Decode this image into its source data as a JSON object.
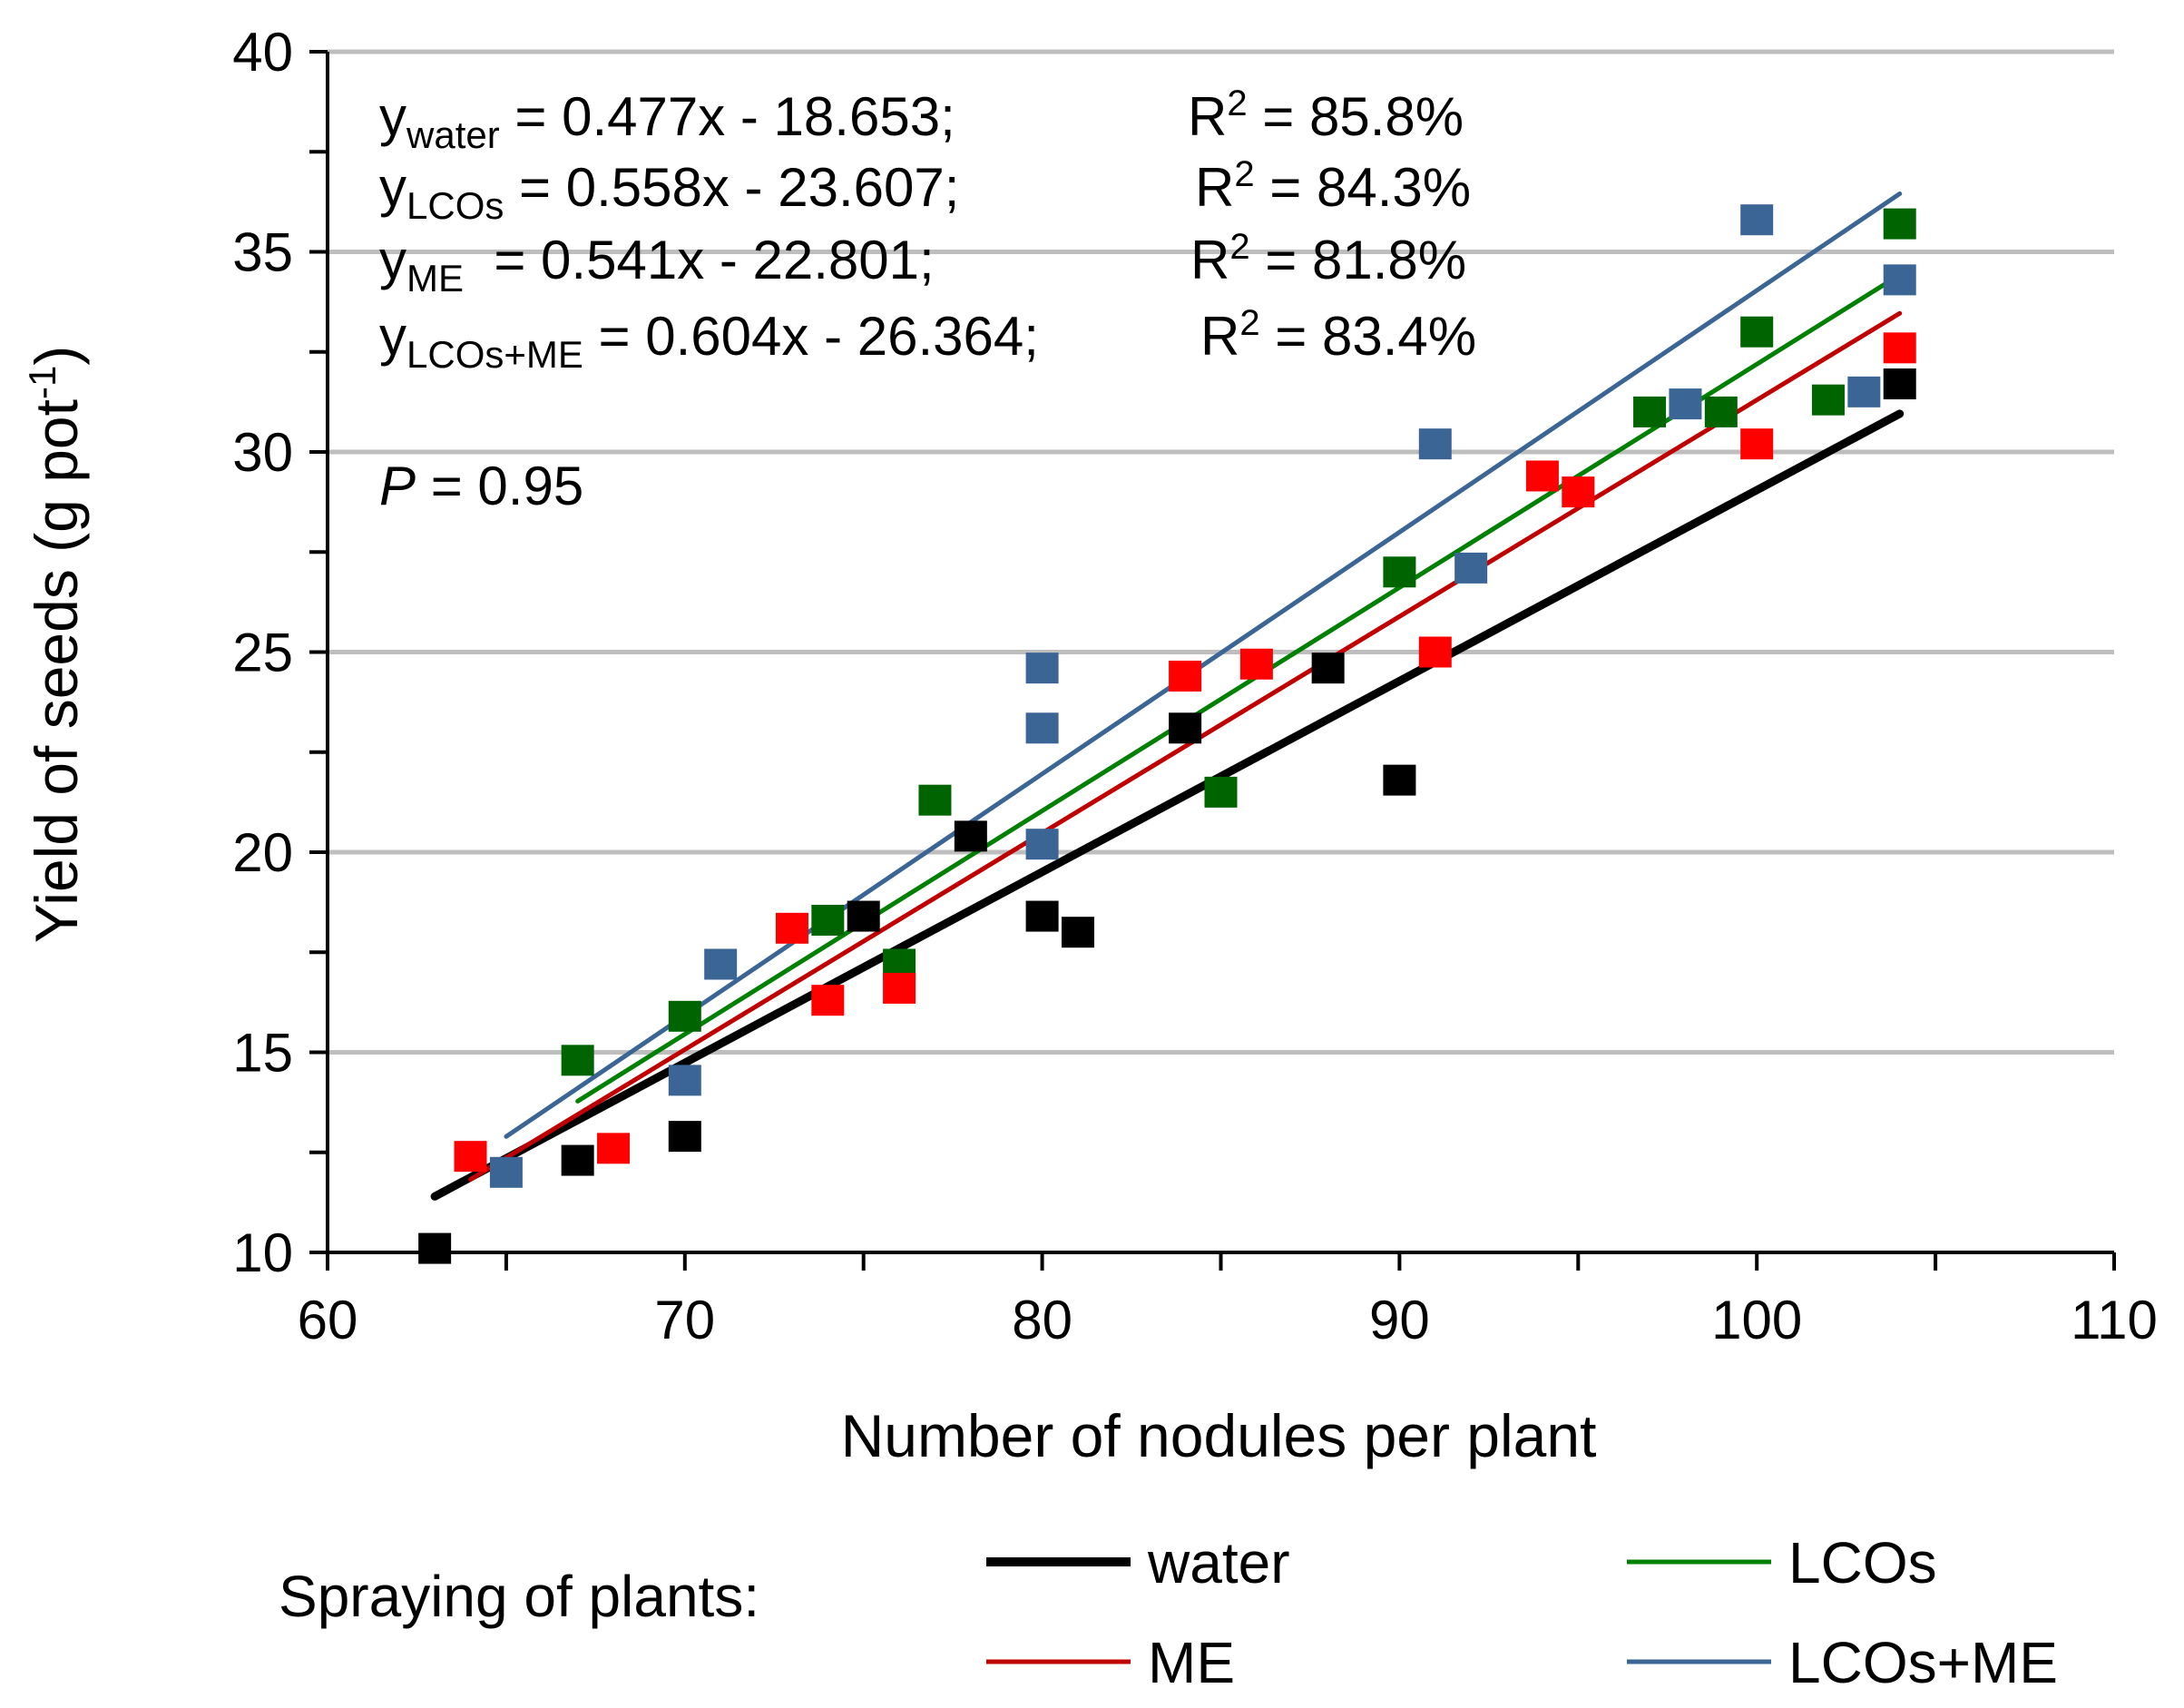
{
  "chart_data": {
    "type": "scatter",
    "title": "",
    "xlabel": "Number of nodules per plant",
    "ylabel": "Yield of seeds (g pot",
    "ylabel_sup": "-1",
    "ylabel_end": ")",
    "xlim": [
      60,
      110
    ],
    "ylim": [
      10,
      40
    ],
    "xticks": [
      60,
      70,
      80,
      90,
      100,
      110
    ],
    "yticks": [
      10,
      15,
      20,
      25,
      30,
      35,
      40
    ],
    "xtick_labels": [
      "60",
      "70",
      "80",
      "90",
      "100",
      "110"
    ],
    "ytick_labels": [
      "10",
      "15",
      "20",
      "25",
      "30",
      "35",
      "40"
    ],
    "grid": "horizontal",
    "legend_title": "Spraying of plants:",
    "legend_placement": "bottom",
    "series": [
      {
        "name": "water",
        "color": "#000000",
        "marker_color": "#000000",
        "x": [
          63,
          67,
          70,
          75,
          78,
          80,
          81,
          84,
          88,
          90,
          104
        ],
        "y": [
          10.1,
          12.3,
          12.9,
          18.4,
          20.4,
          18.4,
          18.0,
          23.1,
          24.6,
          21.8,
          31.7
        ],
        "fit": {
          "slope": 0.477,
          "intercept": -18.653,
          "x_range": [
            63,
            104
          ]
        }
      },
      {
        "name": "LCOs",
        "color": "#008000",
        "marker_color": "#006400",
        "x": [
          67,
          70,
          74,
          76,
          77,
          85,
          90,
          97,
          99,
          100,
          102,
          104
        ],
        "y": [
          14.8,
          15.9,
          18.3,
          17.2,
          21.3,
          21.5,
          27.0,
          31.0,
          31.0,
          33.0,
          31.3,
          35.7
        ],
        "fit": {
          "slope": 0.558,
          "intercept": -23.607,
          "x_range": [
            67,
            104
          ]
        }
      },
      {
        "name": "ME",
        "color": "#C00000",
        "marker_color": "#FF0000",
        "x": [
          64,
          68,
          73,
          74,
          76,
          84,
          86,
          91,
          94,
          95,
          100,
          104
        ],
        "y": [
          12.4,
          12.6,
          18.1,
          16.3,
          16.6,
          24.4,
          24.7,
          25.0,
          29.4,
          29.0,
          30.2,
          32.6
        ],
        "fit": {
          "slope": 0.541,
          "intercept": -22.801,
          "x_range": [
            64,
            104
          ]
        }
      },
      {
        "name": "LCOs+ME",
        "color": "#3A6595",
        "marker_color": "#3A6595",
        "x": [
          65,
          70,
          71,
          80,
          80,
          80,
          91,
          92,
          98,
          100,
          103,
          104
        ],
        "y": [
          12.0,
          14.3,
          17.2,
          24.6,
          23.1,
          20.2,
          30.2,
          27.1,
          31.2,
          35.8,
          31.5,
          34.3
        ],
        "fit": {
          "slope": 0.604,
          "intercept": -26.364,
          "x_range": [
            65,
            104
          ]
        }
      }
    ],
    "annotations": {
      "equations": [
        {
          "y": "y",
          "sub": "water",
          "rest": " = 0.477x - 18.653;",
          "r": "R",
          "sup": "2",
          "r_rest": " = 85.8%"
        },
        {
          "y": "y",
          "sub": "LCOs",
          "rest": " = 0.558x - 23.607;",
          "r": "R",
          "sup": "2",
          "r_rest": " = 84.3%"
        },
        {
          "y": "y",
          "sub": "ME",
          "rest": "  = 0.541x - 22.801;",
          "r": "R",
          "sup": "2",
          "r_rest": " = 81.8%"
        },
        {
          "y": "y",
          "sub": "LCOs+ME",
          "rest": " = 0.604x - 26.364;",
          "r": "R",
          "sup": "2",
          "r_rest": " = 83.4%"
        }
      ],
      "p_label": "P",
      "p_rest": " = 0.95"
    }
  }
}
